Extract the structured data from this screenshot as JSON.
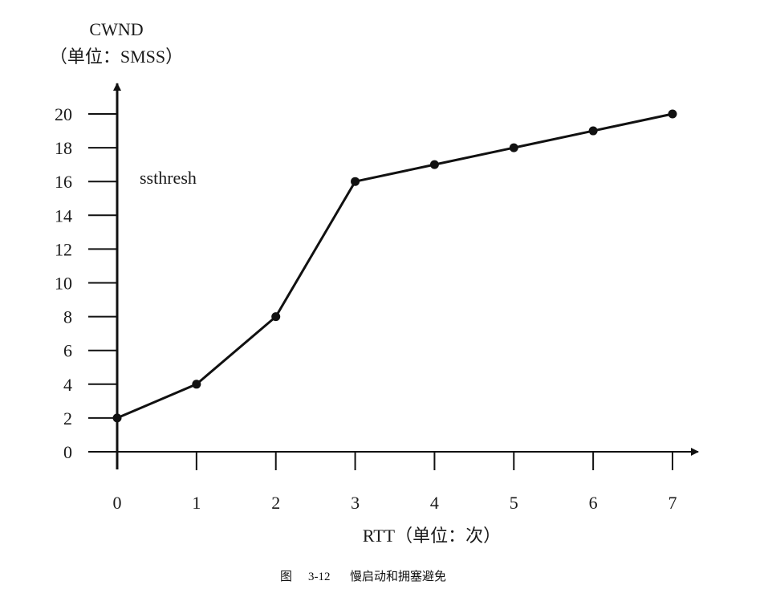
{
  "chart_data": {
    "type": "line",
    "title": "",
    "ylabel": "CWND",
    "ylabel_unit": "（单位：SMSS）",
    "xlabel": "RTT（单位：次）",
    "annotation": "ssthresh",
    "x": [
      0,
      1,
      2,
      3,
      4,
      5,
      6,
      7
    ],
    "y": [
      2,
      4,
      8,
      16,
      17,
      18,
      19,
      20
    ],
    "xlim": [
      0,
      7
    ],
    "ylim": [
      0,
      20
    ],
    "x_ticks": [
      "0",
      "1",
      "2",
      "3",
      "4",
      "5",
      "6",
      "7"
    ],
    "y_ticks": [
      "0",
      "2",
      "4",
      "6",
      "8",
      "10",
      "12",
      "14",
      "16",
      "18",
      "20"
    ],
    "grid": false,
    "legend": "none",
    "line_color": "#111111"
  },
  "caption": {
    "label": "图",
    "number": "3-12",
    "text": "慢启动和拥塞避免"
  }
}
